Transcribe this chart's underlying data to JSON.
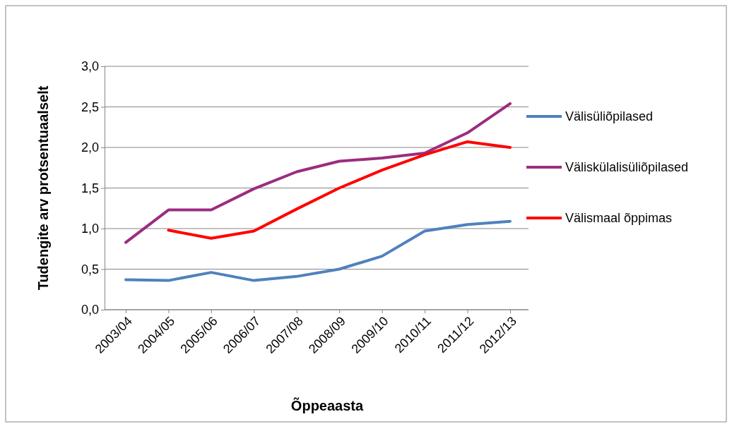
{
  "chart_data": {
    "type": "line",
    "xlabel": "Õppeaasta",
    "ylabel": "Tudengite arv protsentuaalselt",
    "categories": [
      "2003/04",
      "2004/05",
      "2005/06",
      "2006/07",
      "2007/08",
      "2008/09",
      "2009/10",
      "2010/11",
      "2011/12",
      "2012/13"
    ],
    "series": [
      {
        "name": "Välisüliõpilased",
        "color": "#4f81bd",
        "values": [
          0.37,
          0.36,
          0.46,
          0.36,
          0.41,
          0.5,
          0.66,
          0.97,
          1.05,
          1.09
        ]
      },
      {
        "name": "Väliskülalisüliõpilased",
        "color": "#9b2d7f",
        "values": [
          0.83,
          1.23,
          1.23,
          1.49,
          1.7,
          1.83,
          1.87,
          1.93,
          2.18,
          2.54
        ]
      },
      {
        "name": "Välismaal õppimas",
        "color": "#ff0000",
        "values": [
          null,
          0.98,
          0.88,
          0.97,
          1.24,
          1.5,
          1.72,
          1.91,
          2.07,
          2.0
        ]
      }
    ],
    "ylim": [
      0,
      3
    ],
    "yticks": [
      {
        "value": 0,
        "label": "0,0"
      },
      {
        "value": 0.5,
        "label": "0,5"
      },
      {
        "value": 1,
        "label": "1,0"
      },
      {
        "value": 1.5,
        "label": "1,5"
      },
      {
        "value": 2,
        "label": "2,0"
      },
      {
        "value": 2.5,
        "label": "2,5"
      },
      {
        "value": 3,
        "label": "3,0"
      }
    ],
    "grid": "y",
    "legend": "right",
    "marker": "none",
    "line_style": "solid"
  }
}
